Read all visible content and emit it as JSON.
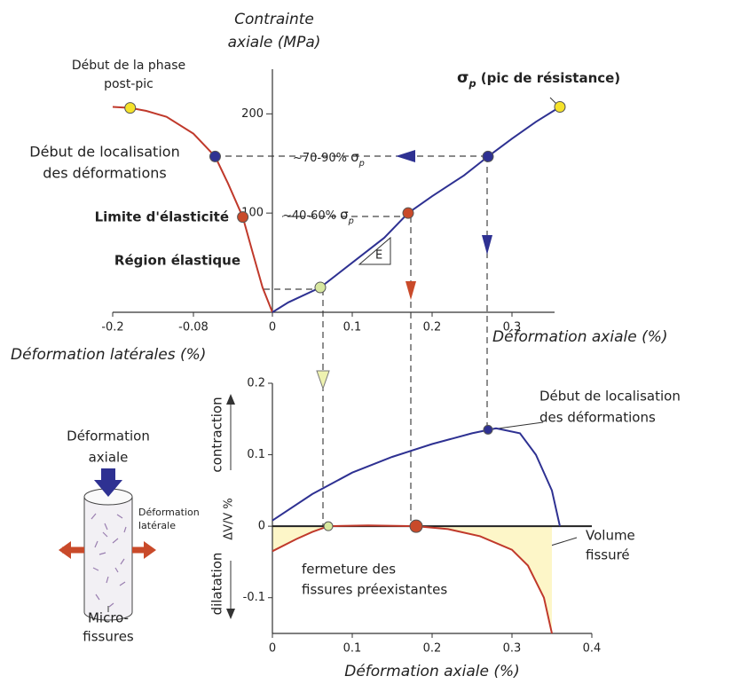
{
  "chart_data": [
    {
      "type": "line",
      "y_title": [
        "Contrainte",
        "axiale (MPa)"
      ],
      "x_title": "Déformation axiale (%)",
      "x2_title": "Déformation latérales (%)",
      "xticks": [
        -0.2,
        -0.08,
        0,
        0.1,
        0.2,
        0.3
      ],
      "ylim": [
        0,
        245
      ],
      "yticks": [
        100,
        200
      ],
      "series": [
        {
          "color": "#c0392b",
          "x": [
            0,
            -0.01,
            -0.02,
            -0.03,
            -0.045,
            -0.058,
            -0.08,
            -0.12,
            -0.15,
            -0.174,
            -0.2
          ],
          "values": [
            0,
            25,
            60,
            96,
            130,
            157,
            180,
            197,
            203,
            206,
            207
          ]
        },
        {
          "color": "#2e3192",
          "x": [
            0,
            0.02,
            0.06,
            0.1,
            0.14,
            0.17,
            0.2,
            0.24,
            0.27,
            0.3,
            0.33,
            0.36
          ],
          "values": [
            0,
            10,
            25,
            50,
            75,
            100,
            117,
            138,
            157,
            175,
            192,
            207
          ]
        }
      ],
      "points": [
        {
          "x": -0.174,
          "y": 206,
          "color": "#f5e22a"
        },
        {
          "x": -0.058,
          "y": 157,
          "color": "#2e3192"
        },
        {
          "x": -0.03,
          "y": 96,
          "color": "#c94a2a"
        },
        {
          "x": 0.06,
          "y": 25,
          "color": "#d8e8a0"
        },
        {
          "x": 0.17,
          "y": 100,
          "color": "#c94a2a"
        },
        {
          "x": 0.27,
          "y": 157,
          "color": "#2e3192"
        },
        {
          "x": 0.36,
          "y": 207,
          "color": "#f5e22a"
        }
      ],
      "annotations": {
        "post_peak": [
          "Début de la phase",
          "post-pic"
        ],
        "localisation": [
          "Début de localisation",
          "des déformations"
        ],
        "elastic_limit": "Limite d'élasticité",
        "elastic_region": "Région élastique",
        "peak": {
          "symbol": "σ",
          "sub": "p",
          "text": " (pic de résistance)"
        },
        "range_high": {
          "text": "~70-90% ",
          "symbol": "σ",
          "sub": "p"
        },
        "range_low": {
          "text": "~40-60% ",
          "symbol": "σ",
          "sub": "p"
        },
        "modulus": "E"
      }
    },
    {
      "type": "line",
      "x_title": "Déformation axiale (%)",
      "y_title": "ΔV/V %",
      "xlim": [
        0,
        0.4
      ],
      "xticks": [
        0,
        0.1,
        0.2,
        0.3,
        0.4
      ],
      "ylim": [
        -0.15,
        0.2
      ],
      "yticks": [
        0.2,
        0.1,
        0,
        -0.1
      ],
      "series": [
        {
          "color": "#2e3192",
          "x": [
            0,
            0.05,
            0.1,
            0.15,
            0.2,
            0.25,
            0.28,
            0.31,
            0.33,
            0.35,
            0.36
          ],
          "values": [
            0.008,
            0.045,
            0.075,
            0.097,
            0.115,
            0.13,
            0.137,
            0.13,
            0.1,
            0.05,
            0
          ]
        },
        {
          "color": "#c0392b",
          "fill": "#fdf6c8",
          "x": [
            0,
            0.03,
            0.05,
            0.07,
            0.12,
            0.18,
            0.22,
            0.26,
            0.3,
            0.32,
            0.34,
            0.35
          ],
          "values": [
            -0.035,
            -0.018,
            -0.008,
            0,
            0.001,
            0,
            -0.004,
            -0.014,
            -0.033,
            -0.055,
            -0.1,
            -0.15
          ]
        }
      ],
      "points": [
        {
          "x": 0.07,
          "y": 0,
          "color": "#d8e8a0"
        },
        {
          "x": 0.18,
          "y": 0,
          "color": "#c94a2a"
        },
        {
          "x": 0.27,
          "y": 0.135,
          "color": "#2e3192"
        }
      ],
      "annotations": {
        "localisation": [
          "Début de localisation",
          "des déformations"
        ],
        "cracked_volume": [
          "Volume",
          "fissuré"
        ],
        "closure": [
          "fermeture des",
          "fissures préexistantes"
        ],
        "contraction": "contraction",
        "dilatation": "dilatation"
      }
    }
  ],
  "inset": {
    "axial": [
      "Déformation",
      "axiale"
    ],
    "lateral": [
      "Déformation",
      "latérale"
    ],
    "cracks": [
      "Micro-",
      "fissures"
    ]
  }
}
